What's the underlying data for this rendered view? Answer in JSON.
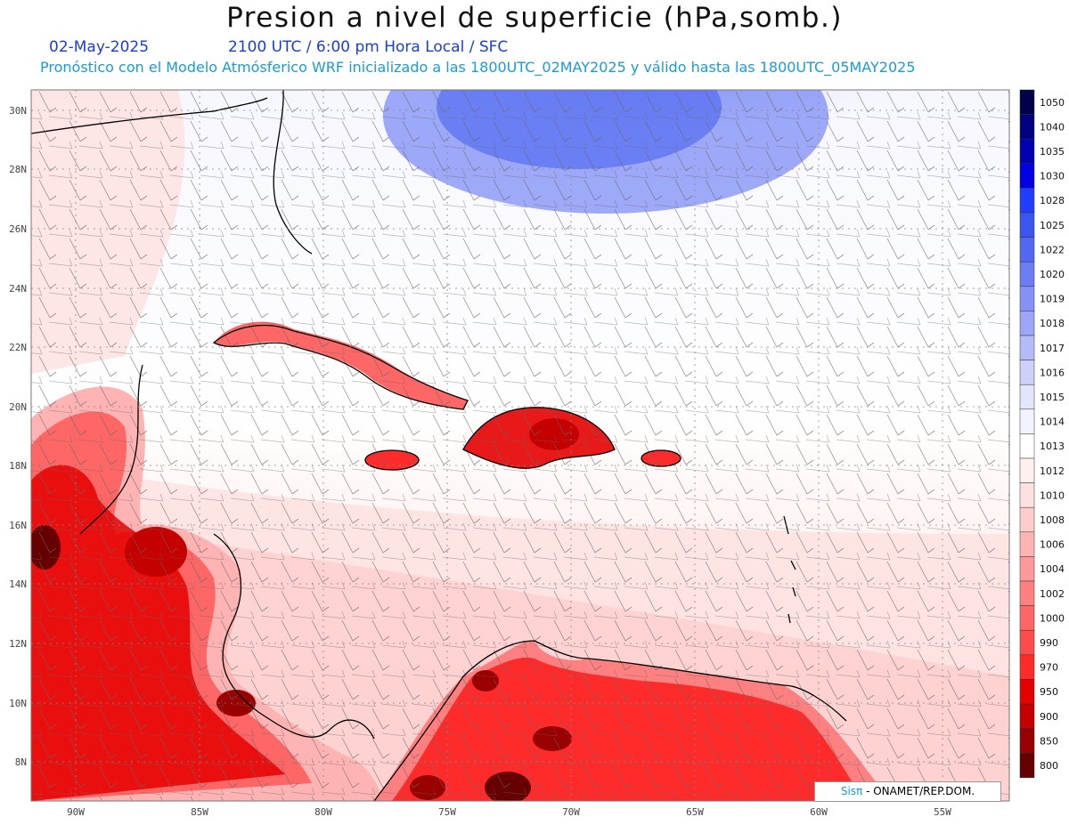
{
  "header": {
    "title": "Presion a nivel de superficie (hPa,somb.)",
    "date": "02-May-2025",
    "time_info": "2100 UTC / 6:00 pm Hora Local / SFC",
    "model_info": "Pronóstico con el Modelo Atmósferico WRF inicializado a las 1800UTC_02MAY2025 y válido hasta las  1800UTC_05MAY2025"
  },
  "axes": {
    "lat_ticks": [
      "30N",
      "28N",
      "26N",
      "24N",
      "22N",
      "20N",
      "18N",
      "16N",
      "14N",
      "12N",
      "10N",
      "8N"
    ],
    "lon_ticks": [
      "90W",
      "85W",
      "80W",
      "75W",
      "70W",
      "65W",
      "60W",
      "55W"
    ]
  },
  "colorbar": {
    "levels": [
      {
        "label": "1050",
        "color": "#00004d"
      },
      {
        "label": "1040",
        "color": "#000080"
      },
      {
        "label": "1035",
        "color": "#0000b3"
      },
      {
        "label": "1030",
        "color": "#0000e6"
      },
      {
        "label": "1028",
        "color": "#1f3dff"
      },
      {
        "label": "1025",
        "color": "#3a55f0"
      },
      {
        "label": "1022",
        "color": "#5267f2"
      },
      {
        "label": "1020",
        "color": "#6b7ef3"
      },
      {
        "label": "1019",
        "color": "#8591f5"
      },
      {
        "label": "1018",
        "color": "#9ea6f7"
      },
      {
        "label": "1017",
        "color": "#b5bbf9"
      },
      {
        "label": "1016",
        "color": "#ccd0fa"
      },
      {
        "label": "1015",
        "color": "#e3e5fc"
      },
      {
        "label": "1014",
        "color": "#f2f3fe"
      },
      {
        "label": "1013",
        "color": "#ffffff"
      },
      {
        "label": "1012",
        "color": "#fff0f0"
      },
      {
        "label": "1010",
        "color": "#ffe0e0"
      },
      {
        "label": "1008",
        "color": "#ffcccc"
      },
      {
        "label": "1006",
        "color": "#ffb3b3"
      },
      {
        "label": "1004",
        "color": "#ff9999"
      },
      {
        "label": "1002",
        "color": "#ff8080"
      },
      {
        "label": "1000",
        "color": "#ff6666"
      },
      {
        "label": "990",
        "color": "#ff4d4d"
      },
      {
        "label": "970",
        "color": "#ff2b2b"
      },
      {
        "label": "950",
        "color": "#e60000"
      },
      {
        "label": "900",
        "color": "#c40000"
      },
      {
        "label": "850",
        "color": "#990000"
      },
      {
        "label": "800",
        "color": "#660000"
      }
    ]
  },
  "credit": {
    "brand": "Sisπ",
    "text": " - ONAMET/REP.DOM."
  }
}
